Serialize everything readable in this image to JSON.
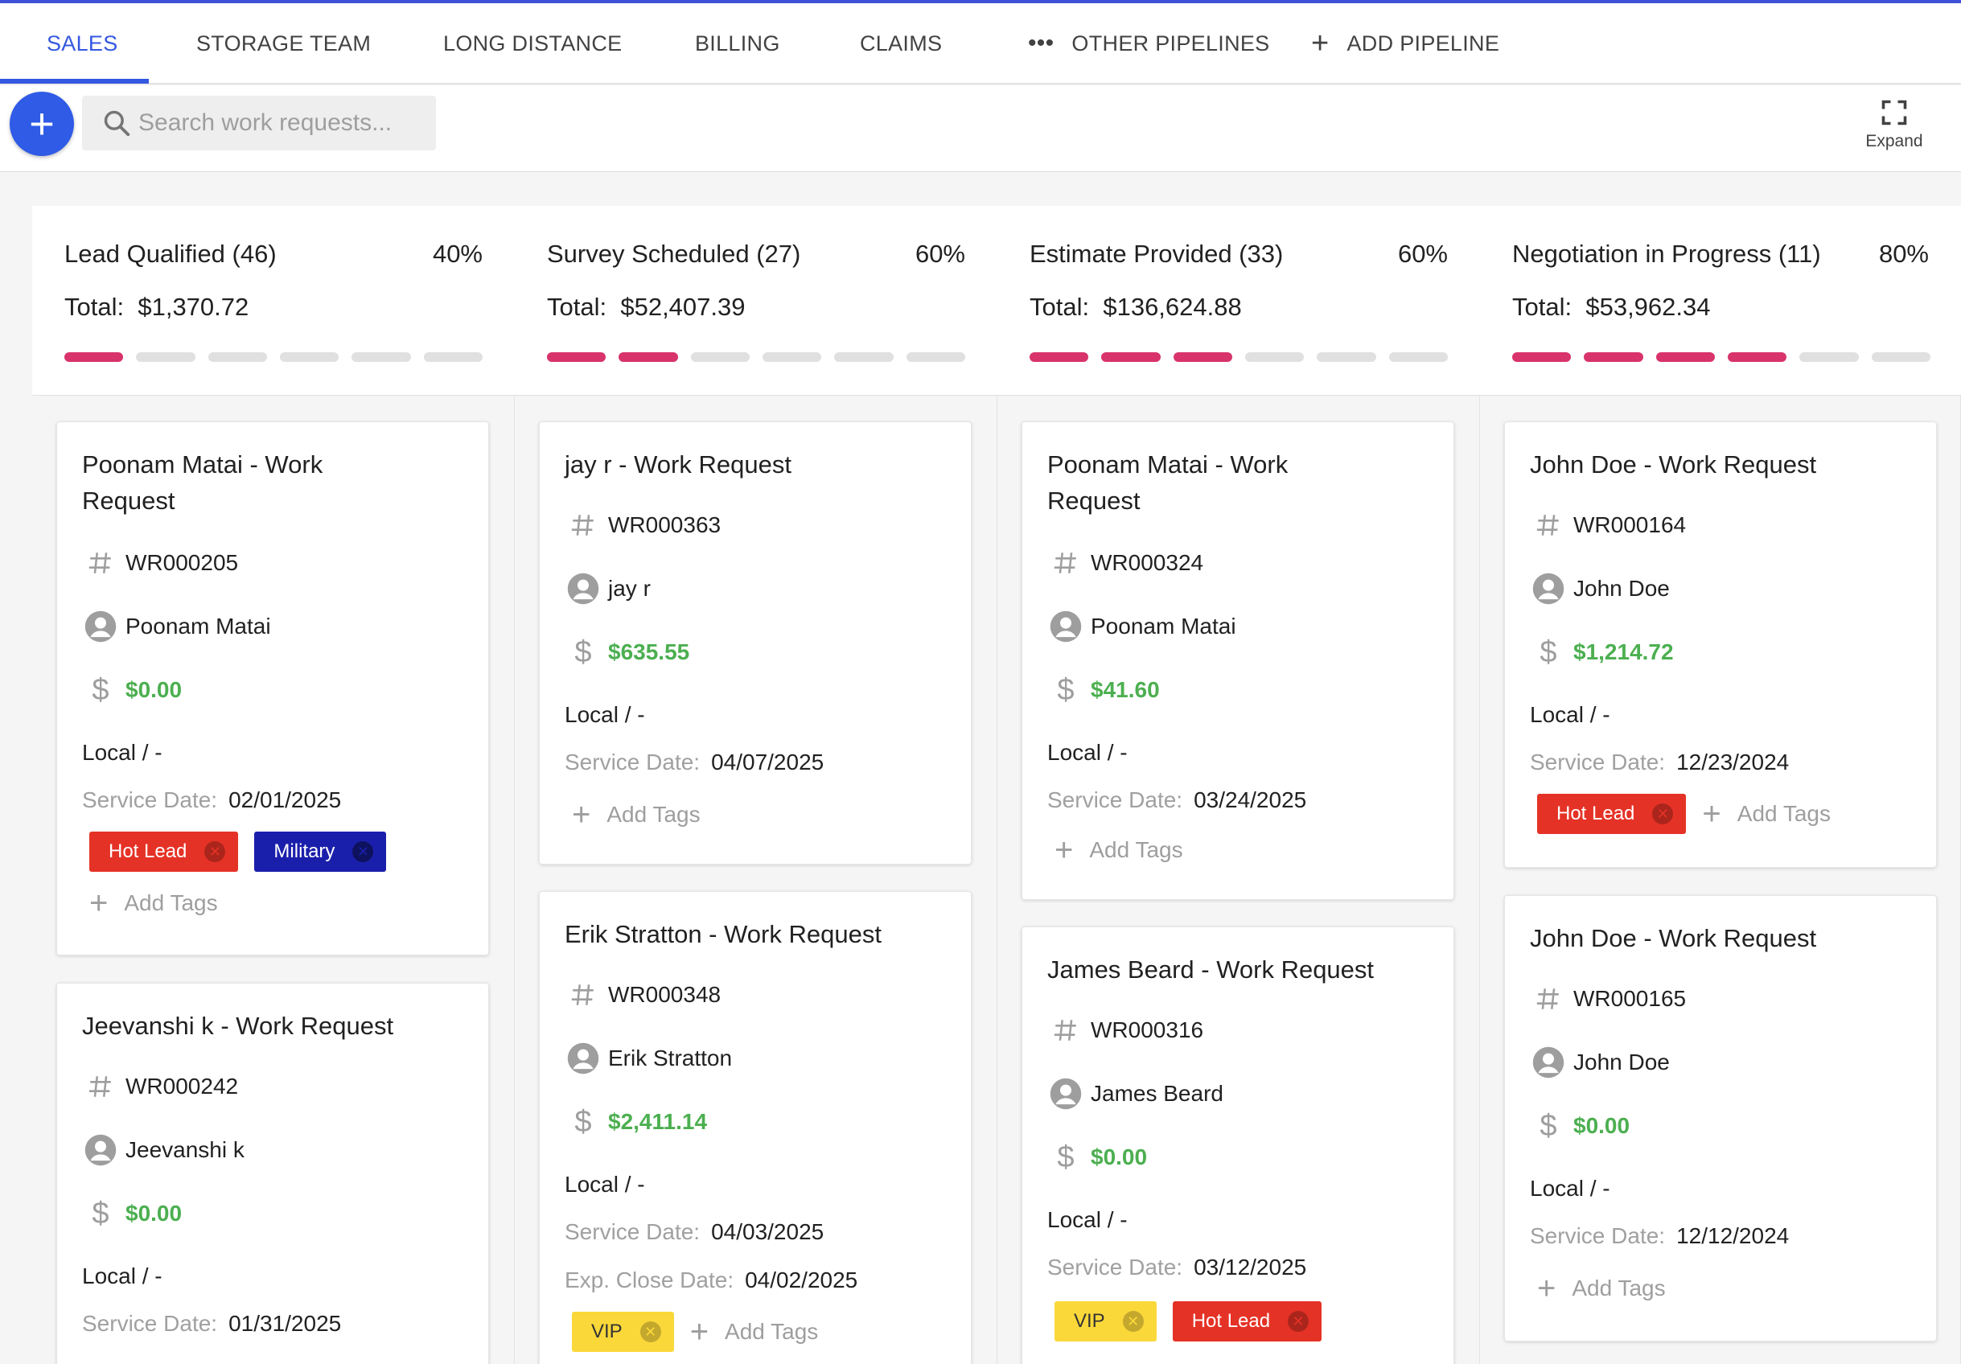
{
  "tabs": [
    {
      "label": "SALES",
      "active": true
    },
    {
      "label": "STORAGE TEAM"
    },
    {
      "label": "LONG DISTANCE"
    },
    {
      "label": "BILLING"
    },
    {
      "label": "CLAIMS"
    },
    {
      "label": "OTHER PIPELINES",
      "icon": "more-horiz-icon"
    },
    {
      "label": "ADD PIPELINE",
      "icon": "plus-icon"
    }
  ],
  "toolbar": {
    "search_placeholder": "Search work requests...",
    "expand_label": "Expand"
  },
  "common": {
    "service_date_label": "Service Date:",
    "exp_close_label": "Exp. Close Date:",
    "add_tags_label": "Add Tags",
    "total_label": "Total:",
    "local_label": "Local / -"
  },
  "columns": [
    {
      "title": "Lead Qualified (46)",
      "percent": "40%",
      "total": "$1,370.72",
      "progress": 0.4,
      "cards": [
        {
          "title": "Poonam Matai - Work Request",
          "wr": "WR000205",
          "customer": "Poonam Matai",
          "amount": "$0.00",
          "service_date": "02/01/2025",
          "tags": [
            {
              "label": "Hot Lead",
              "color": "#e53226"
            },
            {
              "label": "Military",
              "color": "#1a1fab"
            }
          ]
        },
        {
          "title": "Jeevanshi k - Work Request",
          "wr": "WR000242",
          "customer": "Jeevanshi k",
          "amount": "$0.00",
          "service_date": "01/31/2025"
        }
      ]
    },
    {
      "title": "Survey Scheduled (27)",
      "percent": "60%",
      "total": "$52,407.39",
      "progress": 0.6,
      "cards": [
        {
          "title": "jay r - Work Request",
          "wr": "WR000363",
          "customer": "jay r",
          "amount": "$635.55",
          "service_date": "04/07/2025"
        },
        {
          "title": "Erik Stratton - Work Request",
          "wr": "WR000348",
          "customer": "Erik Stratton",
          "amount": "$2,411.14",
          "service_date": "04/03/2025",
          "exp_close_date": "04/02/2025",
          "tags": [
            {
              "label": "VIP",
              "color": "#fbd83a"
            }
          ]
        }
      ]
    },
    {
      "title": "Estimate Provided (33)",
      "percent": "60%",
      "total": "$136,624.88",
      "progress": 0.6,
      "cards": [
        {
          "title": "Poonam Matai - Work Request",
          "wr": "WR000324",
          "customer": "Poonam Matai",
          "amount": "$41.60",
          "service_date": "03/24/2025"
        },
        {
          "title": "James Beard - Work Request",
          "wr": "WR000316",
          "customer": "James Beard",
          "amount": "$0.00",
          "service_date": "03/12/2025",
          "tags": [
            {
              "label": "VIP",
              "color": "#fbd83a"
            },
            {
              "label": "Hot Lead",
              "color": "#e53226"
            }
          ]
        }
      ]
    },
    {
      "title": "Negotiation in Progress (11)",
      "percent": "80%",
      "total": "$53,962.34",
      "progress": 0.8,
      "cards": [
        {
          "title": "John Doe - Work Request",
          "wr": "WR000164",
          "customer": "John Doe",
          "amount": "$1,214.72",
          "service_date": "12/23/2024",
          "tags": [
            {
              "label": "Hot Lead",
              "color": "#e53226"
            }
          ]
        },
        {
          "title": "John Doe - Work Request",
          "wr": "WR000165",
          "customer": "John Doe",
          "amount": "$0.00",
          "service_date": "12/12/2024"
        }
      ]
    }
  ]
}
